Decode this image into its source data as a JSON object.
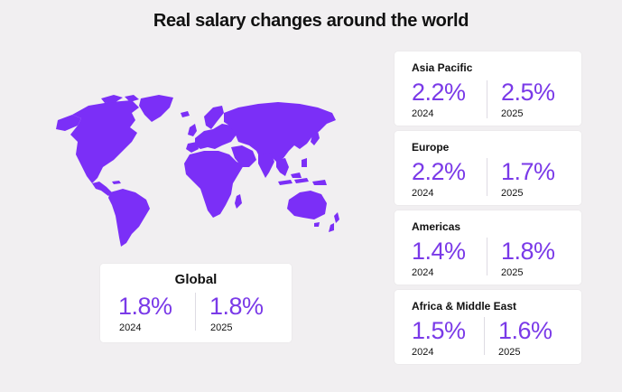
{
  "title": "Real salary changes around the world",
  "colors": {
    "accent": "#7a3ae8",
    "map_fill": "#7b2ff7",
    "background": "#f1eff1",
    "card": "#ffffff"
  },
  "global": {
    "name": "Global",
    "value_2024": "1.8%",
    "year_2024": "2024",
    "value_2025": "1.8%",
    "year_2025": "2025"
  },
  "regions": [
    {
      "name": "Asia Pacific",
      "value_2024": "2.2%",
      "year_2024": "2024",
      "value_2025": "2.5%",
      "year_2025": "2025"
    },
    {
      "name": "Europe",
      "value_2024": "2.2%",
      "year_2024": "2024",
      "value_2025": "1.7%",
      "year_2025": "2025"
    },
    {
      "name": "Americas",
      "value_2024": "1.4%",
      "year_2024": "2024",
      "value_2025": "1.8%",
      "year_2025": "2025"
    },
    {
      "name": "Africa & Middle East",
      "value_2024": "1.5%",
      "year_2024": "2024",
      "value_2025": "1.6%",
      "year_2025": "2025"
    }
  ]
}
